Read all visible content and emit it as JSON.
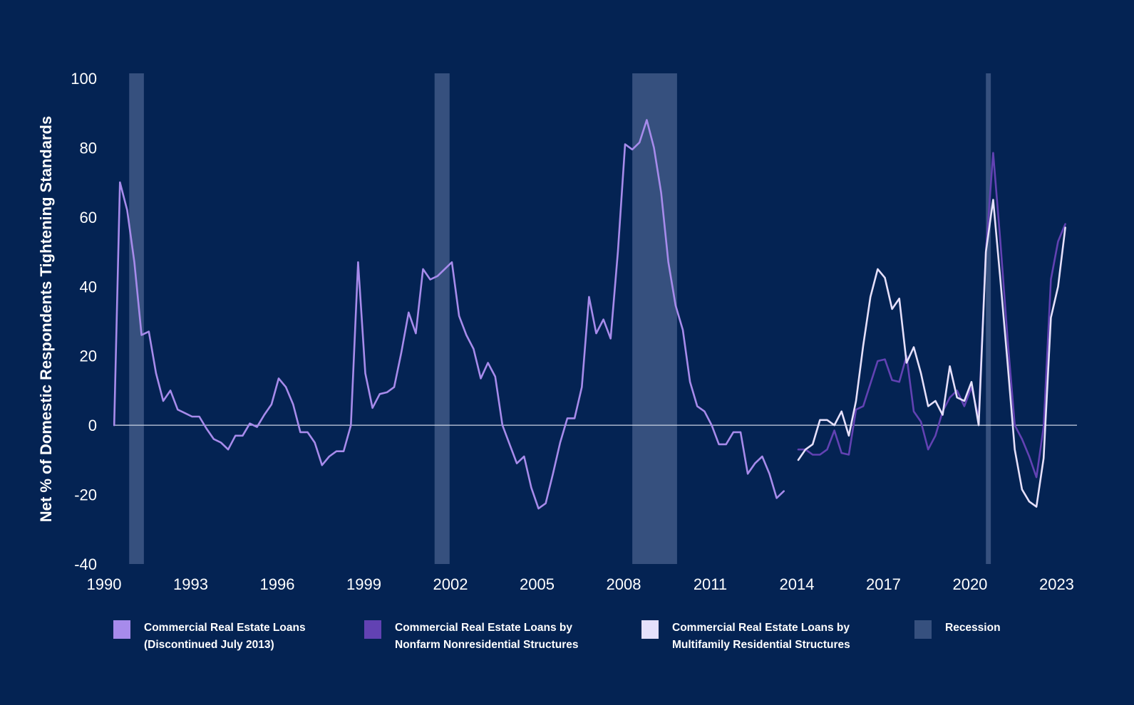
{
  "chart_data": {
    "type": "line",
    "title": "",
    "xlabel": "",
    "ylabel": "Net % of Domestic Respondents Tightening Standards",
    "xlim": [
      1990,
      2024.1
    ],
    "ylim": [
      -40,
      100
    ],
    "x_ticks": [
      1990,
      1993,
      1996,
      1999,
      2002,
      2005,
      2008,
      2011,
      2014,
      2017,
      2020,
      2023
    ],
    "x_tick_labels": [
      "1990",
      "1993",
      "1996",
      "1999",
      "2002",
      "2005",
      "2008",
      "2011",
      "2014",
      "2017",
      "2020",
      "2023"
    ],
    "y_ticks": [
      -40,
      -20,
      0,
      20,
      40,
      60,
      80,
      100
    ],
    "y_tick_labels": [
      "-40",
      "-20",
      "0",
      "20",
      "40",
      "60",
      "80",
      "100"
    ],
    "zero_line": true,
    "legend_position": "bottom",
    "recessions": [
      [
        1990.87,
        1991.38
      ],
      [
        2001.45,
        2001.97
      ],
      [
        2008.3,
        2009.85
      ],
      [
        2020.55,
        2020.72
      ]
    ],
    "series": [
      {
        "name": "Commercial Real Estate Loans (Discontinued July 2013)",
        "legend_lines": [
          "Commercial Real Estate Loans",
          "(Discontinued July 2013)"
        ],
        "color": "#a78beb",
        "points": [
          [
            1990.35,
            0
          ],
          [
            1990.55,
            70
          ],
          [
            1990.8,
            62
          ],
          [
            1991.05,
            47
          ],
          [
            1991.3,
            26
          ],
          [
            1991.55,
            27
          ],
          [
            1991.8,
            15
          ],
          [
            1992.05,
            7
          ],
          [
            1992.3,
            10
          ],
          [
            1992.55,
            4.5
          ],
          [
            1992.8,
            3.5
          ],
          [
            1993.05,
            2.5
          ],
          [
            1993.3,
            2.5
          ],
          [
            1993.55,
            -1
          ],
          [
            1993.8,
            -4
          ],
          [
            1994.05,
            -5
          ],
          [
            1994.3,
            -7
          ],
          [
            1994.55,
            -3
          ],
          [
            1994.8,
            -3
          ],
          [
            1995.05,
            0.5
          ],
          [
            1995.3,
            -0.5
          ],
          [
            1995.55,
            3
          ],
          [
            1995.8,
            6
          ],
          [
            1996.05,
            13.5
          ],
          [
            1996.3,
            11
          ],
          [
            1996.55,
            6
          ],
          [
            1996.8,
            -2
          ],
          [
            1997.05,
            -2
          ],
          [
            1997.3,
            -5
          ],
          [
            1997.55,
            -11.5
          ],
          [
            1997.8,
            -9
          ],
          [
            1998.05,
            -7.5
          ],
          [
            1998.3,
            -7.5
          ],
          [
            1998.55,
            0
          ],
          [
            1998.8,
            47
          ],
          [
            1999.05,
            15
          ],
          [
            1999.3,
            5
          ],
          [
            1999.55,
            9
          ],
          [
            1999.8,
            9.5
          ],
          [
            2000.05,
            11
          ],
          [
            2000.3,
            21
          ],
          [
            2000.55,
            32.5
          ],
          [
            2000.8,
            26.5
          ],
          [
            2001.05,
            45
          ],
          [
            2001.3,
            42
          ],
          [
            2001.55,
            43
          ],
          [
            2001.8,
            45
          ],
          [
            2002.05,
            47
          ],
          [
            2002.3,
            31.5
          ],
          [
            2002.55,
            26
          ],
          [
            2002.8,
            22
          ],
          [
            2003.05,
            13.5
          ],
          [
            2003.3,
            18
          ],
          [
            2003.55,
            14
          ],
          [
            2003.8,
            0
          ],
          [
            2004.05,
            -5.5
          ],
          [
            2004.3,
            -11
          ],
          [
            2004.55,
            -9
          ],
          [
            2004.8,
            -18
          ],
          [
            2005.05,
            -24
          ],
          [
            2005.3,
            -22.5
          ],
          [
            2005.55,
            -14
          ],
          [
            2005.8,
            -5
          ],
          [
            2006.05,
            2
          ],
          [
            2006.3,
            2
          ],
          [
            2006.55,
            11
          ],
          [
            2006.8,
            37
          ],
          [
            2007.05,
            26.5
          ],
          [
            2007.3,
            30.5
          ],
          [
            2007.55,
            25
          ],
          [
            2007.8,
            50
          ],
          [
            2008.05,
            81
          ],
          [
            2008.3,
            79.5
          ],
          [
            2008.55,
            81.5
          ],
          [
            2008.8,
            88
          ],
          [
            2009.05,
            80
          ],
          [
            2009.3,
            67
          ],
          [
            2009.55,
            47
          ],
          [
            2009.8,
            34.5
          ],
          [
            2010.05,
            27.5
          ],
          [
            2010.3,
            12.5
          ],
          [
            2010.55,
            5.5
          ],
          [
            2010.8,
            4
          ],
          [
            2011.05,
            0
          ],
          [
            2011.3,
            -5.5
          ],
          [
            2011.55,
            -5.5
          ],
          [
            2011.8,
            -2
          ],
          [
            2012.05,
            -2
          ],
          [
            2012.3,
            -14
          ],
          [
            2012.55,
            -11
          ],
          [
            2012.8,
            -9
          ],
          [
            2013.05,
            -14
          ],
          [
            2013.3,
            -21
          ],
          [
            2013.55,
            -19
          ]
        ]
      },
      {
        "name": "Commercial Real Estate Loans by Nonfarm Nonresidential Structures",
        "legend_lines": [
          "Commercial Real Estate Loans by",
          "Nonfarm Nonresidential Structures"
        ],
        "color": "#6242b3",
        "points": [
          [
            2014.05,
            -7
          ],
          [
            2014.3,
            -7
          ],
          [
            2014.55,
            -8.5
          ],
          [
            2014.8,
            -8.5
          ],
          [
            2015.05,
            -7
          ],
          [
            2015.3,
            -1.5
          ],
          [
            2015.55,
            -8
          ],
          [
            2015.8,
            -8.5
          ],
          [
            2016.05,
            4.5
          ],
          [
            2016.3,
            5.5
          ],
          [
            2016.55,
            12
          ],
          [
            2016.8,
            18.5
          ],
          [
            2017.05,
            19
          ],
          [
            2017.3,
            13
          ],
          [
            2017.55,
            12.5
          ],
          [
            2017.8,
            20
          ],
          [
            2018.05,
            4
          ],
          [
            2018.3,
            1
          ],
          [
            2018.55,
            -7
          ],
          [
            2018.8,
            -3
          ],
          [
            2019.05,
            4
          ],
          [
            2019.3,
            8
          ],
          [
            2019.55,
            10
          ],
          [
            2019.8,
            5.5
          ],
          [
            2020.05,
            11
          ],
          [
            2020.3,
            2
          ],
          [
            2020.55,
            50
          ],
          [
            2020.8,
            78.5
          ],
          [
            2021.05,
            53
          ],
          [
            2021.3,
            25
          ],
          [
            2021.55,
            0
          ],
          [
            2021.8,
            -4
          ],
          [
            2022.05,
            -9
          ],
          [
            2022.3,
            -15
          ],
          [
            2022.55,
            -0.5
          ],
          [
            2022.8,
            42
          ],
          [
            2023.05,
            53
          ],
          [
            2023.3,
            58
          ]
        ]
      },
      {
        "name": "Commercial Real Estate Loans by Multifamily Residential Structures",
        "legend_lines": [
          "Commercial Real Estate Loans by",
          "Multifamily Residential Structures"
        ],
        "color": "#e6e0fb",
        "points": [
          [
            2014.05,
            -10
          ],
          [
            2014.3,
            -7
          ],
          [
            2014.55,
            -5.5
          ],
          [
            2014.8,
            1.5
          ],
          [
            2015.05,
            1.5
          ],
          [
            2015.3,
            0
          ],
          [
            2015.55,
            4
          ],
          [
            2015.8,
            -3
          ],
          [
            2016.05,
            7
          ],
          [
            2016.3,
            23
          ],
          [
            2016.55,
            37
          ],
          [
            2016.8,
            45
          ],
          [
            2017.05,
            42.5
          ],
          [
            2017.3,
            33.5
          ],
          [
            2017.55,
            36.5
          ],
          [
            2017.8,
            18
          ],
          [
            2018.05,
            22.5
          ],
          [
            2018.3,
            15
          ],
          [
            2018.55,
            5.5
          ],
          [
            2018.8,
            7
          ],
          [
            2019.05,
            3
          ],
          [
            2019.3,
            17
          ],
          [
            2019.55,
            8
          ],
          [
            2019.8,
            7
          ],
          [
            2020.05,
            12.5
          ],
          [
            2020.3,
            0
          ],
          [
            2020.55,
            50
          ],
          [
            2020.8,
            65
          ],
          [
            2021.05,
            42
          ],
          [
            2021.3,
            18
          ],
          [
            2021.55,
            -7
          ],
          [
            2021.8,
            -18.5
          ],
          [
            2022.05,
            -22
          ],
          [
            2022.3,
            -23.5
          ],
          [
            2022.55,
            -9.5
          ],
          [
            2022.8,
            31
          ],
          [
            2023.05,
            40
          ],
          [
            2023.3,
            57
          ]
        ]
      }
    ],
    "recession_legend": "Recession",
    "recession_color": "#36507e"
  }
}
